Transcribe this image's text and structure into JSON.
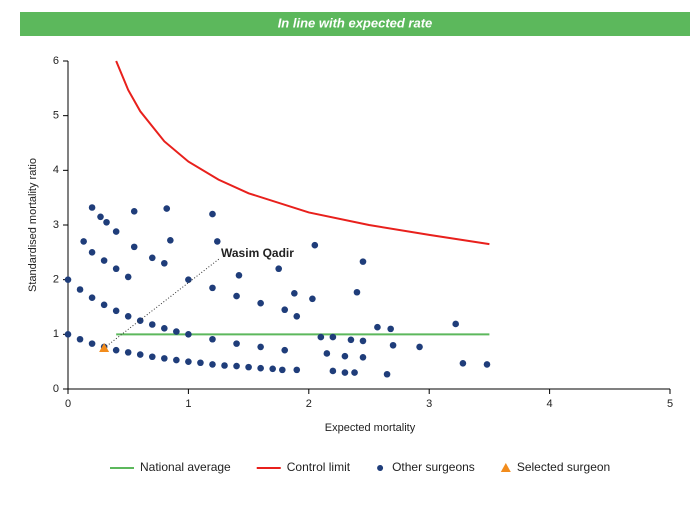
{
  "chart_data": {
    "type": "scatter",
    "title": "In line with expected rate",
    "xlabel": "Expected mortality",
    "ylabel": "Standardised mortality ratio",
    "xlim": [
      0,
      5
    ],
    "ylim": [
      0,
      6
    ],
    "xticks": [
      0,
      1,
      2,
      3,
      4,
      5
    ],
    "yticks": [
      0,
      1,
      2,
      3,
      4,
      5,
      6
    ],
    "banner_color": "#5cb85c",
    "series": [
      {
        "name": "National average",
        "kind": "line",
        "color": "#5cb85c",
        "x": [
          0.4,
          3.5
        ],
        "values": [
          1,
          1
        ]
      },
      {
        "name": "Control limit",
        "kind": "line",
        "color": "#e8201c",
        "x": [
          0.4,
          0.5,
          0.6,
          0.8,
          1,
          1.25,
          1.5,
          2,
          2.5,
          3,
          3.5
        ],
        "values": [
          6.0,
          5.47,
          5.08,
          4.53,
          4.16,
          3.83,
          3.58,
          3.23,
          3.0,
          2.82,
          2.65
        ]
      },
      {
        "name": "Other surgeons",
        "kind": "scatter",
        "marker": "circle",
        "color": "#1f3d7a",
        "x": [
          0,
          0.1,
          0.2,
          0.3,
          0.4,
          0.5,
          0.6,
          0.7,
          0.8,
          0.9,
          1.0,
          1.1,
          1.2,
          1.3,
          1.4,
          1.5,
          1.6,
          1.7,
          0,
          0.1,
          0.2,
          0.3,
          0.4,
          0.5,
          0.6,
          0.7,
          0.8,
          0.9,
          1.0,
          1.2,
          1.4,
          1.6,
          1.8,
          0.2,
          0.3,
          0.4,
          0.5,
          0.55,
          0.7,
          0.8,
          1.0,
          1.2,
          1.4,
          1.6,
          1.8,
          1.9,
          0.2,
          0.27,
          0.32,
          0.4,
          0.55,
          0.82,
          1.2,
          0.13,
          0.85,
          1.24,
          2.05,
          2.45,
          1.42,
          1.75,
          2.4,
          1.88,
          2.03,
          2.57,
          2.68,
          3.22,
          2.7,
          2.92,
          2.1,
          2.2,
          2.35,
          2.45,
          2.15,
          2.3,
          2.45,
          1.9,
          2.2,
          2.3,
          2.38,
          2.65,
          3.28,
          3.48,
          1.78
        ],
        "values": [
          1,
          0.91,
          0.83,
          0.77,
          0.71,
          0.67,
          0.63,
          0.59,
          0.56,
          0.53,
          0.5,
          0.48,
          0.45,
          0.43,
          0.42,
          0.4,
          0.38,
          0.37,
          2,
          1.82,
          1.67,
          1.54,
          1.43,
          1.33,
          1.25,
          1.18,
          1.11,
          1.05,
          1,
          0.91,
          0.83,
          0.77,
          0.71,
          2.5,
          2.35,
          2.2,
          2.05,
          2.6,
          2.4,
          2.3,
          2.0,
          1.85,
          1.7,
          1.57,
          1.45,
          1.33,
          3.32,
          3.15,
          3.05,
          2.88,
          3.25,
          3.3,
          3.2,
          2.7,
          2.72,
          2.7,
          2.63,
          2.33,
          2.08,
          2.2,
          1.77,
          1.75,
          1.65,
          1.13,
          1.1,
          1.19,
          0.8,
          0.77,
          0.95,
          0.95,
          0.9,
          0.88,
          0.65,
          0.6,
          0.58,
          0.35,
          0.33,
          0.3,
          0.3,
          0.27,
          0.47,
          0.45,
          0.35
        ]
      },
      {
        "name": "Selected surgeon",
        "kind": "scatter",
        "marker": "triangle",
        "color": "#f28c1c",
        "x": [
          0.3
        ],
        "values": [
          0.75
        ],
        "annotation": "Wasim Qadir"
      }
    ]
  }
}
